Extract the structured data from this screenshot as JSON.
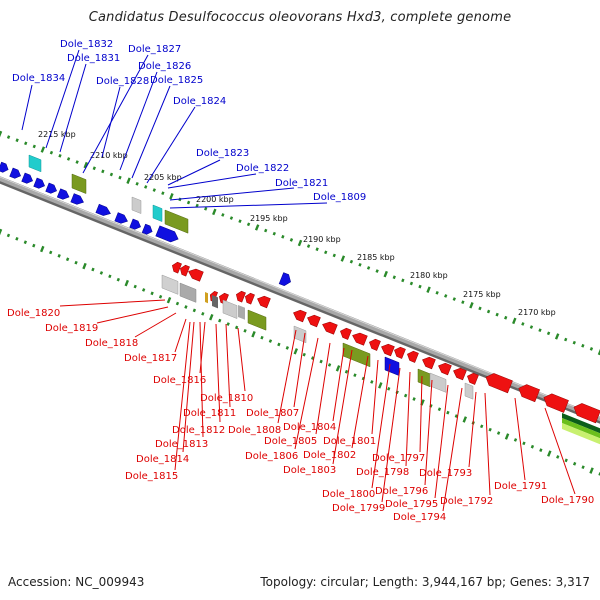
{
  "title": "Candidatus Desulfococcus oleovorans Hxd3, complete genome",
  "footer": {
    "accession": "Accession: NC_009943",
    "summary": "Topology: circular; Length: 3,944,167 bp; Genes: 3,317"
  },
  "colors": {
    "forward_gene": "#1010e0",
    "reverse_gene": "#ee1111",
    "ruler_dots": "#2a8a2a",
    "backbone": "#888888",
    "forward_label": "#0000cc",
    "reverse_label": "#dd0000"
  },
  "kbp_ticks": [
    "2215 kbp",
    "2210 kbp",
    "2205 kbp",
    "2200 kbp",
    "2195 kbp",
    "2190 kbp",
    "2185 kbp",
    "2180 kbp",
    "2175 kbp",
    "2170 kbp"
  ],
  "forward_genes": [
    "Dole_1834",
    "Dole_1832",
    "Dole_1831",
    "Dole_1828",
    "Dole_1827",
    "Dole_1826",
    "Dole_1825",
    "Dole_1824",
    "Dole_1823",
    "Dole_1822",
    "Dole_1821",
    "Dole_1809"
  ],
  "reverse_genes": [
    "Dole_1820",
    "Dole_1819",
    "Dole_1818",
    "Dole_1817",
    "Dole_1816",
    "Dole_1815",
    "Dole_1814",
    "Dole_1813",
    "Dole_1812",
    "Dole_1811",
    "Dole_1810",
    "Dole_1808",
    "Dole_1807",
    "Dole_1806",
    "Dole_1805",
    "Dole_1804",
    "Dole_1803",
    "Dole_1802",
    "Dole_1801",
    "Dole_1800",
    "Dole_1799",
    "Dole_1798",
    "Dole_1797",
    "Dole_1796",
    "Dole_1795",
    "Dole_1794",
    "Dole_1793",
    "Dole_1792",
    "Dole_1791",
    "Dole_1790"
  ]
}
